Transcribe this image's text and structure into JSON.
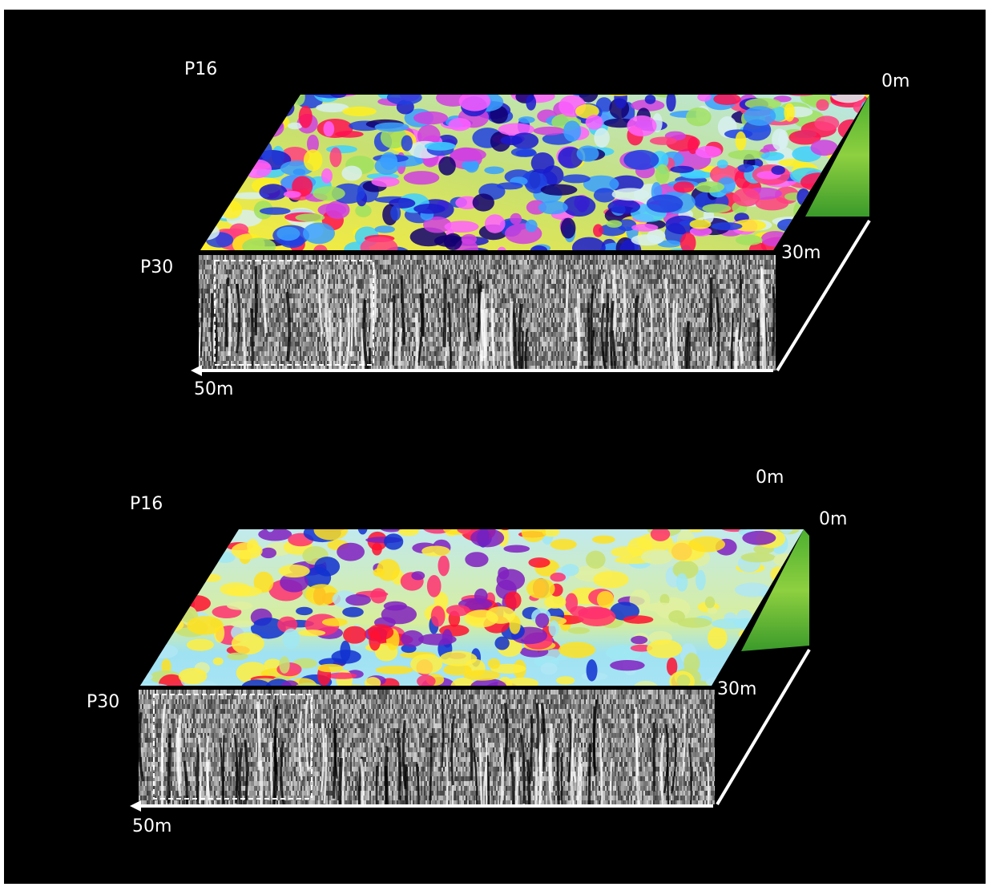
{
  "panels": [
    {
      "top_profile": "P16",
      "start": "0m",
      "width": "30m",
      "front_profile": "P30",
      "length": "50m"
    },
    {
      "top_profile": "P16",
      "extra_start": "0m",
      "start": "0m",
      "width": "30m",
      "front_profile": "P30",
      "length": "50m"
    }
  ]
}
